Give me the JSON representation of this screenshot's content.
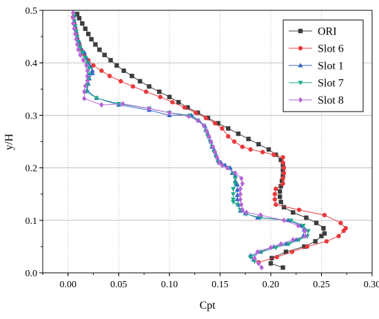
{
  "chart_data": {
    "type": "line",
    "xlabel": "Cpt",
    "ylabel": "y/H",
    "xlim": [
      -0.025,
      0.3
    ],
    "ylim": [
      0,
      0.5
    ],
    "xticks": [
      "0.00",
      "0.05",
      "0.10",
      "0.15",
      "0.20",
      "0.25",
      "0.30"
    ],
    "xtick_values": [
      0,
      0.05,
      0.1,
      0.15,
      0.2,
      0.25,
      0.3
    ],
    "yticks": [
      "0.0",
      "0.1",
      "0.2",
      "0.3",
      "0.4",
      "0.5"
    ],
    "ytick_values": [
      0,
      0.1,
      0.2,
      0.3,
      0.4,
      0.5
    ],
    "grid": "on",
    "legend_position": "top-right",
    "series": [
      {
        "name": "ORI",
        "color": "#3c3c3c",
        "marker": "square",
        "points": [
          [
            0.212,
            0.01
          ],
          [
            0.2,
            0.018
          ],
          [
            0.201,
            0.028
          ],
          [
            0.215,
            0.04
          ],
          [
            0.233,
            0.05
          ],
          [
            0.244,
            0.06
          ],
          [
            0.25,
            0.07
          ],
          [
            0.253,
            0.075
          ],
          [
            0.252,
            0.085
          ],
          [
            0.245,
            0.095
          ],
          [
            0.235,
            0.105
          ],
          [
            0.222,
            0.115
          ],
          [
            0.213,
            0.125
          ],
          [
            0.21,
            0.135
          ],
          [
            0.209,
            0.145
          ],
          [
            0.209,
            0.155
          ],
          [
            0.21,
            0.165
          ],
          [
            0.211,
            0.175
          ],
          [
            0.212,
            0.185
          ],
          [
            0.212,
            0.195
          ],
          [
            0.212,
            0.205
          ],
          [
            0.21,
            0.215
          ],
          [
            0.205,
            0.225
          ],
          [
            0.198,
            0.235
          ],
          [
            0.188,
            0.245
          ],
          [
            0.178,
            0.255
          ],
          [
            0.168,
            0.265
          ],
          [
            0.158,
            0.275
          ],
          [
            0.148,
            0.285
          ],
          [
            0.138,
            0.295
          ],
          [
            0.128,
            0.305
          ],
          [
            0.118,
            0.315
          ],
          [
            0.109,
            0.325
          ],
          [
            0.1,
            0.335
          ],
          [
            0.09,
            0.345
          ],
          [
            0.08,
            0.355
          ],
          [
            0.071,
            0.365
          ],
          [
            0.063,
            0.375
          ],
          [
            0.055,
            0.385
          ],
          [
            0.048,
            0.395
          ],
          [
            0.042,
            0.405
          ],
          [
            0.036,
            0.415
          ],
          [
            0.031,
            0.425
          ],
          [
            0.027,
            0.435
          ],
          [
            0.023,
            0.445
          ],
          [
            0.02,
            0.455
          ],
          [
            0.017,
            0.465
          ],
          [
            0.014,
            0.475
          ],
          [
            0.011,
            0.485
          ],
          [
            0.009,
            0.493
          ]
        ]
      },
      {
        "name": "Slot 6",
        "color": "#e8393c",
        "marker": "circle",
        "points": [
          [
            0.188,
            0.02
          ],
          [
            0.206,
            0.03
          ],
          [
            0.221,
            0.04
          ],
          [
            0.236,
            0.05
          ],
          [
            0.255,
            0.06
          ],
          [
            0.267,
            0.07
          ],
          [
            0.272,
            0.08
          ],
          [
            0.274,
            0.085
          ],
          [
            0.269,
            0.095
          ],
          [
            0.253,
            0.11
          ],
          [
            0.228,
            0.12
          ],
          [
            0.205,
            0.13
          ],
          [
            0.204,
            0.14
          ],
          [
            0.204,
            0.15
          ],
          [
            0.205,
            0.16
          ],
          [
            0.212,
            0.17
          ],
          [
            0.212,
            0.18
          ],
          [
            0.213,
            0.19
          ],
          [
            0.213,
            0.2
          ],
          [
            0.212,
            0.21
          ],
          [
            0.212,
            0.22
          ],
          [
            0.203,
            0.225
          ],
          [
            0.192,
            0.23
          ],
          [
            0.18,
            0.235
          ],
          [
            0.172,
            0.24
          ],
          [
            0.164,
            0.25
          ],
          [
            0.158,
            0.26
          ],
          [
            0.152,
            0.275
          ],
          [
            0.145,
            0.285
          ],
          [
            0.136,
            0.295
          ],
          [
            0.126,
            0.305
          ],
          [
            0.115,
            0.315
          ],
          [
            0.103,
            0.325
          ],
          [
            0.091,
            0.335
          ],
          [
            0.077,
            0.345
          ],
          [
            0.064,
            0.355
          ],
          [
            0.052,
            0.365
          ],
          [
            0.041,
            0.375
          ],
          [
            0.033,
            0.385
          ],
          [
            0.025,
            0.395
          ],
          [
            0.02,
            0.405
          ],
          [
            0.016,
            0.415
          ],
          [
            0.013,
            0.425
          ],
          [
            0.011,
            0.435
          ],
          [
            0.009,
            0.445
          ],
          [
            0.008,
            0.455
          ],
          [
            0.007,
            0.465
          ],
          [
            0.006,
            0.475
          ],
          [
            0.005,
            0.487
          ]
        ]
      },
      {
        "name": "Slot 1",
        "color": "#3465c8",
        "marker": "triangle-up",
        "points": [
          [
            0.183,
            0.025
          ],
          [
            0.18,
            0.033
          ],
          [
            0.19,
            0.04
          ],
          [
            0.203,
            0.05
          ],
          [
            0.215,
            0.055
          ],
          [
            0.225,
            0.063
          ],
          [
            0.232,
            0.07
          ],
          [
            0.233,
            0.082
          ],
          [
            0.23,
            0.09
          ],
          [
            0.217,
            0.1
          ],
          [
            0.187,
            0.105
          ],
          [
            0.175,
            0.113
          ],
          [
            0.17,
            0.118
          ],
          [
            0.168,
            0.13
          ],
          [
            0.167,
            0.14
          ],
          [
            0.167,
            0.148
          ],
          [
            0.167,
            0.158
          ],
          [
            0.167,
            0.168
          ],
          [
            0.165,
            0.175
          ],
          [
            0.165,
            0.185
          ],
          [
            0.162,
            0.19
          ],
          [
            0.16,
            0.2
          ],
          [
            0.155,
            0.205
          ],
          [
            0.151,
            0.21
          ],
          [
            0.148,
            0.215
          ],
          [
            0.146,
            0.225
          ],
          [
            0.144,
            0.235
          ],
          [
            0.142,
            0.24
          ],
          [
            0.141,
            0.25
          ],
          [
            0.139,
            0.26
          ],
          [
            0.138,
            0.265
          ],
          [
            0.136,
            0.272
          ],
          [
            0.135,
            0.28
          ],
          [
            0.129,
            0.29
          ],
          [
            0.122,
            0.3
          ],
          [
            0.1,
            0.3
          ],
          [
            0.08,
            0.31
          ],
          [
            0.05,
            0.32
          ],
          [
            0.028,
            0.333
          ],
          [
            0.019,
            0.347
          ],
          [
            0.02,
            0.36
          ],
          [
            0.021,
            0.37
          ],
          [
            0.024,
            0.38
          ],
          [
            0.024,
            0.385
          ],
          [
            0.022,
            0.393
          ],
          [
            0.02,
            0.4
          ],
          [
            0.018,
            0.41
          ],
          [
            0.016,
            0.42
          ],
          [
            0.012,
            0.43
          ],
          [
            0.011,
            0.44
          ],
          [
            0.009,
            0.45
          ],
          [
            0.008,
            0.46
          ],
          [
            0.007,
            0.47
          ],
          [
            0.006,
            0.48
          ],
          [
            0.006,
            0.49
          ]
        ]
      },
      {
        "name": "Slot 7",
        "color": "#1fa98a",
        "marker": "triangle-down",
        "points": [
          [
            0.184,
            0.022
          ],
          [
            0.18,
            0.03
          ],
          [
            0.191,
            0.04
          ],
          [
            0.205,
            0.048
          ],
          [
            0.218,
            0.055
          ],
          [
            0.228,
            0.063
          ],
          [
            0.236,
            0.07
          ],
          [
            0.237,
            0.08
          ],
          [
            0.232,
            0.09
          ],
          [
            0.22,
            0.1
          ],
          [
            0.19,
            0.105
          ],
          [
            0.176,
            0.112
          ],
          [
            0.17,
            0.12
          ],
          [
            0.167,
            0.13
          ],
          [
            0.163,
            0.135
          ],
          [
            0.163,
            0.14
          ],
          [
            0.163,
            0.15
          ],
          [
            0.163,
            0.16
          ],
          [
            0.165,
            0.17
          ],
          [
            0.165,
            0.18
          ],
          [
            0.163,
            0.19
          ],
          [
            0.158,
            0.2
          ],
          [
            0.152,
            0.205
          ],
          [
            0.148,
            0.21
          ],
          [
            0.146,
            0.22
          ],
          [
            0.144,
            0.23
          ],
          [
            0.142,
            0.24
          ],
          [
            0.14,
            0.25
          ],
          [
            0.138,
            0.26
          ],
          [
            0.136,
            0.27
          ],
          [
            0.134,
            0.28
          ],
          [
            0.128,
            0.29
          ],
          [
            0.12,
            0.3
          ],
          [
            0.1,
            0.305
          ],
          [
            0.08,
            0.313
          ],
          [
            0.05,
            0.322
          ],
          [
            0.028,
            0.333
          ],
          [
            0.018,
            0.345
          ],
          [
            0.019,
            0.358
          ],
          [
            0.02,
            0.368
          ],
          [
            0.021,
            0.378
          ],
          [
            0.021,
            0.39
          ],
          [
            0.019,
            0.4
          ],
          [
            0.017,
            0.41
          ],
          [
            0.014,
            0.42
          ],
          [
            0.012,
            0.43
          ],
          [
            0.01,
            0.44
          ],
          [
            0.009,
            0.45
          ],
          [
            0.008,
            0.46
          ],
          [
            0.007,
            0.47
          ],
          [
            0.006,
            0.48
          ],
          [
            0.006,
            0.49
          ]
        ]
      },
      {
        "name": "Slot 8",
        "color": "#b565d6",
        "marker": "diamond",
        "points": [
          [
            0.191,
            0.01
          ],
          [
            0.188,
            0.018
          ],
          [
            0.184,
            0.028
          ],
          [
            0.187,
            0.04
          ],
          [
            0.2,
            0.048
          ],
          [
            0.21,
            0.055
          ],
          [
            0.222,
            0.063
          ],
          [
            0.234,
            0.07
          ],
          [
            0.234,
            0.08
          ],
          [
            0.227,
            0.09
          ],
          [
            0.213,
            0.1
          ],
          [
            0.19,
            0.11
          ],
          [
            0.176,
            0.115
          ],
          [
            0.172,
            0.12
          ],
          [
            0.171,
            0.13
          ],
          [
            0.17,
            0.14
          ],
          [
            0.17,
            0.15
          ],
          [
            0.17,
            0.16
          ],
          [
            0.172,
            0.17
          ],
          [
            0.171,
            0.18
          ],
          [
            0.165,
            0.19
          ],
          [
            0.157,
            0.2
          ],
          [
            0.152,
            0.205
          ],
          [
            0.149,
            0.21
          ],
          [
            0.147,
            0.22
          ],
          [
            0.145,
            0.23
          ],
          [
            0.143,
            0.24
          ],
          [
            0.141,
            0.25
          ],
          [
            0.139,
            0.26
          ],
          [
            0.137,
            0.27
          ],
          [
            0.134,
            0.28
          ],
          [
            0.128,
            0.29
          ],
          [
            0.119,
            0.298
          ],
          [
            0.1,
            0.305
          ],
          [
            0.08,
            0.313
          ],
          [
            0.054,
            0.322
          ],
          [
            0.033,
            0.32
          ],
          [
            0.016,
            0.332
          ],
          [
            0.016,
            0.345
          ],
          [
            0.017,
            0.356
          ],
          [
            0.019,
            0.366
          ],
          [
            0.019,
            0.375
          ],
          [
            0.019,
            0.385
          ],
          [
            0.018,
            0.395
          ],
          [
            0.015,
            0.405
          ],
          [
            0.012,
            0.415
          ],
          [
            0.01,
            0.425
          ],
          [
            0.009,
            0.435
          ],
          [
            0.008,
            0.445
          ],
          [
            0.007,
            0.455
          ],
          [
            0.006,
            0.465
          ],
          [
            0.005,
            0.475
          ],
          [
            0.005,
            0.485
          ],
          [
            0.005,
            0.495
          ]
        ]
      }
    ]
  }
}
